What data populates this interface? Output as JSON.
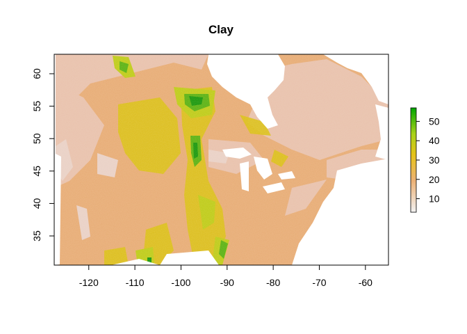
{
  "chart_data": {
    "type": "heatmap",
    "title": "Clay",
    "xlabel": "",
    "ylabel": "",
    "xlim": [
      -127.5,
      -55
    ],
    "ylim": [
      30.5,
      63
    ],
    "x_ticks": [
      -120,
      -110,
      -100,
      -90,
      -80,
      -70,
      -60
    ],
    "x_tick_labels": [
      "-120",
      "-110",
      "-100",
      "-90",
      "-80",
      "-70",
      "-60"
    ],
    "y_ticks": [
      35,
      40,
      45,
      50,
      55,
      60
    ],
    "y_tick_labels": [
      "35",
      "40",
      "45",
      "50",
      "55",
      "60"
    ],
    "legend": {
      "position": "right",
      "range": [
        3,
        57
      ],
      "ticks": [
        10,
        20,
        30,
        40,
        50
      ],
      "tick_labels": [
        "10",
        "20",
        "30",
        "40",
        "50"
      ],
      "colors": [
        "#f2f2f2",
        "#ecb176",
        "#e6c319",
        "#a9d21a",
        "#00a600"
      ]
    },
    "colors": {
      "base": "#e8ae78",
      "light": "#e9c3ae",
      "lightest": "#ead2c7",
      "yellow": "#dcc219",
      "yellowgreen": "#c0cd1c",
      "green": "#5eb416",
      "darkgreen": "#1e9a10",
      "nodata": "#ffffff"
    }
  }
}
